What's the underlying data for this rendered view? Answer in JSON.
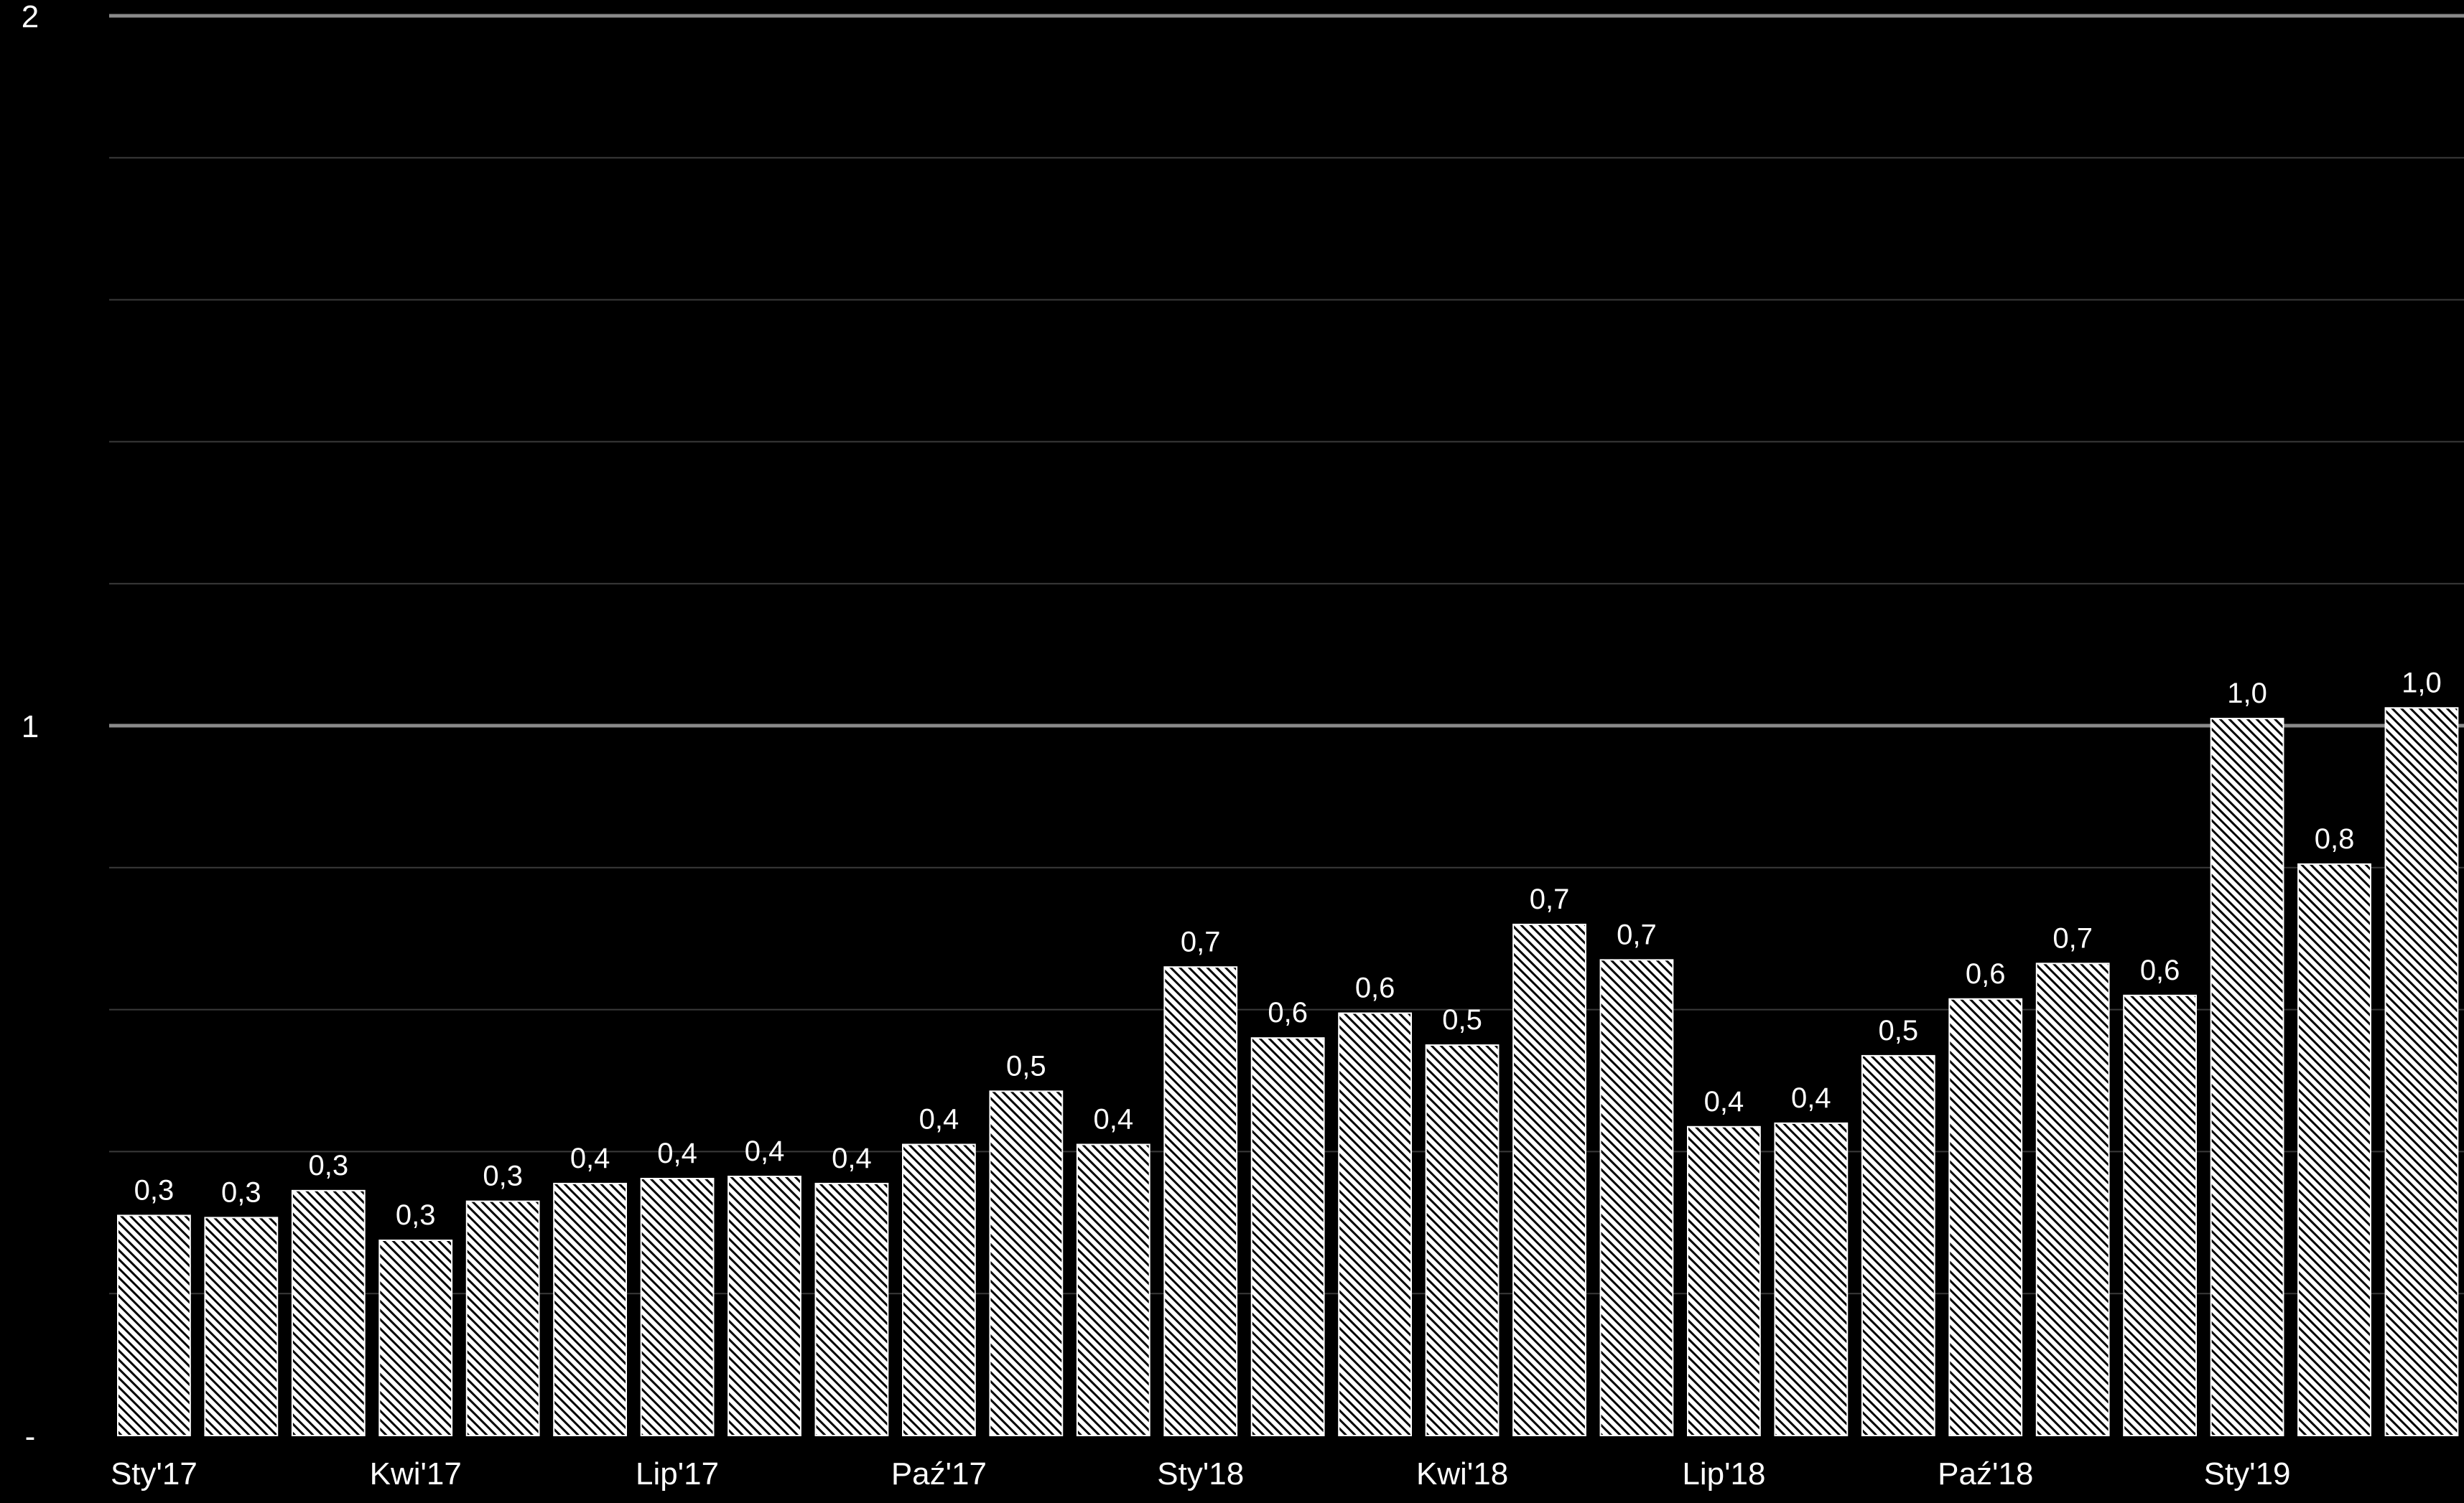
{
  "chart_data": {
    "type": "bar",
    "categories": [
      "Sty'17",
      "",
      "",
      "Kwi'17",
      "",
      "",
      "Lip'17",
      "",
      "",
      "Paź'17",
      "",
      "",
      "Sty'18",
      "",
      "",
      "Kwi'18",
      "",
      "",
      "Lip'18",
      "",
      "",
      "Paź'18",
      "",
      "",
      "Sty'19",
      "",
      ""
    ],
    "values": [
      0.31,
      0.307,
      0.345,
      0.275,
      0.33,
      0.355,
      0.362,
      0.365,
      0.355,
      0.41,
      0.485,
      0.41,
      0.66,
      0.56,
      0.595,
      0.55,
      0.72,
      0.67,
      0.435,
      0.44,
      0.535,
      0.615,
      0.665,
      0.62,
      1.01,
      0.805,
      1.025
    ],
    "data_labels": [
      "0,3",
      "0,3",
      "0,3",
      "0,3",
      "0,3",
      "0,4",
      "0,4",
      "0,4",
      "0,4",
      "0,4",
      "0,5",
      "0,4",
      "0,7",
      "0,6",
      "0,6",
      "0,5",
      "0,7",
      "0,7",
      "0,4",
      "0,4",
      "0,5",
      "0,6",
      "0,7",
      "0,6",
      "1,0",
      "0,8",
      "1,0"
    ],
    "x_tick_labels": [
      "Sty'17",
      "Kwi'17",
      "Lip'17",
      "Paź'17",
      "Sty'18",
      "Kwi'18",
      "Lip'18",
      "Paź'18",
      "Sty'19"
    ],
    "y_tick_labels": [
      "-",
      "1",
      "2"
    ],
    "ylim": [
      0,
      2
    ],
    "title": "",
    "xlabel": "",
    "ylabel": "",
    "grid": true,
    "legend": "none",
    "colors": {
      "background": "#000000",
      "bar_fill": "#ffffff",
      "bar_hatch": "#000000",
      "text": "#ffffff",
      "major_grid": "#8a8a8a",
      "minor_grid": "#3a3a3a"
    }
  }
}
